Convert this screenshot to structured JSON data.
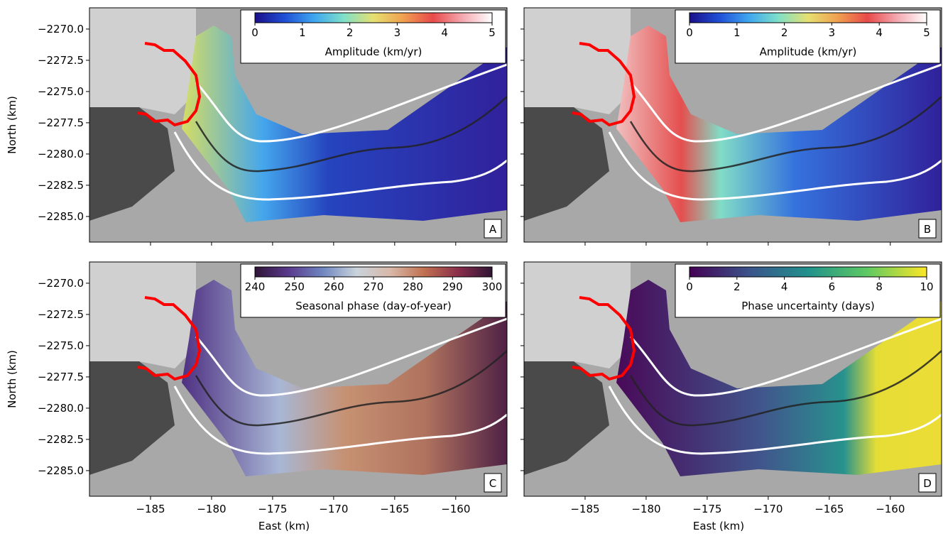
{
  "chart_data": [
    {
      "type": "map",
      "panel": "A",
      "xlim": [
        -190.0,
        -155.8
      ],
      "ylim": [
        -2287.05,
        -2268.3
      ],
      "xticks": [
        {
          "value": -185,
          "label": "−185"
        },
        {
          "value": -180,
          "label": "−180"
        },
        {
          "value": -175,
          "label": "−175"
        },
        {
          "value": -170,
          "label": "−170"
        },
        {
          "value": -165,
          "label": "−165"
        },
        {
          "value": -160,
          "label": "−160"
        }
      ],
      "yticks": [
        {
          "value": -2270.0,
          "label": "−2270.0"
        },
        {
          "value": -2272.5,
          "label": "−2272.5"
        },
        {
          "value": -2275.0,
          "label": "−2275.0"
        },
        {
          "value": -2277.5,
          "label": "−2277.5"
        },
        {
          "value": -2280.0,
          "label": "−2280.0"
        },
        {
          "value": -2282.5,
          "label": "−2282.5"
        },
        {
          "value": -2285.0,
          "label": "−2285.0"
        }
      ],
      "ylabel": "North (km)",
      "colorbar": {
        "label": "Amplitude (km/yr)",
        "lim": [
          0,
          5
        ],
        "ticks": [
          0,
          1,
          2,
          3,
          4,
          5
        ],
        "colors": [
          "#1a0f8a",
          "#1f4fd6",
          "#3fa6f0",
          "#7fe0c8",
          "#e6e070",
          "#f0a050",
          "#e84a4a",
          "#f4a8b0",
          "#ffffff"
        ]
      }
    },
    {
      "type": "map",
      "panel": "B",
      "xlim": [
        -190.0,
        -155.8
      ],
      "ylim": [
        -2287.05,
        -2268.3
      ],
      "xticks": [
        {
          "value": -185,
          "label": "−185"
        },
        {
          "value": -180,
          "label": "−180"
        },
        {
          "value": -175,
          "label": "−175"
        },
        {
          "value": -170,
          "label": "−170"
        },
        {
          "value": -165,
          "label": "−165"
        },
        {
          "value": -160,
          "label": "−160"
        }
      ],
      "yticks": [
        {
          "value": -2270.0,
          "label": "−2270.0"
        },
        {
          "value": -2272.5,
          "label": "−2272.5"
        },
        {
          "value": -2275.0,
          "label": "−2275.0"
        },
        {
          "value": -2277.5,
          "label": "−2277.5"
        },
        {
          "value": -2280.0,
          "label": "−2280.0"
        },
        {
          "value": -2282.5,
          "label": "−2282.5"
        },
        {
          "value": -2285.0,
          "label": "−2285.0"
        }
      ],
      "colorbar": {
        "label": "Amplitude (km/yr)",
        "lim": [
          0,
          5
        ],
        "ticks": [
          0,
          1,
          2,
          3,
          4,
          5
        ],
        "colors": [
          "#1a0f8a",
          "#1f4fd6",
          "#3fa6f0",
          "#7fe0c8",
          "#e6e070",
          "#f0a050",
          "#e84a4a",
          "#f4a8b0",
          "#ffffff"
        ]
      }
    },
    {
      "type": "map",
      "panel": "C",
      "xlim": [
        -190.0,
        -155.8
      ],
      "ylim": [
        -2287.05,
        -2268.3
      ],
      "xticks": [
        {
          "value": -185,
          "label": "−185"
        },
        {
          "value": -180,
          "label": "−180"
        },
        {
          "value": -175,
          "label": "−175"
        },
        {
          "value": -170,
          "label": "−170"
        },
        {
          "value": -165,
          "label": "−165"
        },
        {
          "value": -160,
          "label": "−160"
        }
      ],
      "yticks": [
        {
          "value": -2270.0,
          "label": "−2270.0"
        },
        {
          "value": -2272.5,
          "label": "−2272.5"
        },
        {
          "value": -2275.0,
          "label": "−2275.0"
        },
        {
          "value": -2277.5,
          "label": "−2277.5"
        },
        {
          "value": -2280.0,
          "label": "−2280.0"
        },
        {
          "value": -2282.5,
          "label": "−2282.5"
        },
        {
          "value": -2285.0,
          "label": "−2285.0"
        }
      ],
      "xlabel": "East (km)",
      "ylabel": "North (km)",
      "colorbar": {
        "label": "Seasonal phase (day-of-year)",
        "lim": [
          240,
          300
        ],
        "ticks": [
          240,
          250,
          260,
          270,
          280,
          290,
          300
        ],
        "colors": [
          "#2f1436",
          "#5a3a8e",
          "#6f86c0",
          "#c9d3dc",
          "#d8b8a8",
          "#c07050",
          "#8a2e4a",
          "#2f1436"
        ]
      }
    },
    {
      "type": "map",
      "panel": "D",
      "xlim": [
        -190.0,
        -155.8
      ],
      "ylim": [
        -2287.05,
        -2268.3
      ],
      "xticks": [
        {
          "value": -185,
          "label": "−185"
        },
        {
          "value": -180,
          "label": "−180"
        },
        {
          "value": -175,
          "label": "−175"
        },
        {
          "value": -170,
          "label": "−170"
        },
        {
          "value": -165,
          "label": "−165"
        },
        {
          "value": -160,
          "label": "−160"
        }
      ],
      "yticks": [
        {
          "value": -2270.0,
          "label": "−2270.0"
        },
        {
          "value": -2272.5,
          "label": "−2272.5"
        },
        {
          "value": -2275.0,
          "label": "−2275.0"
        },
        {
          "value": -2277.5,
          "label": "−2277.5"
        },
        {
          "value": -2280.0,
          "label": "−2280.0"
        },
        {
          "value": -2282.5,
          "label": "−2282.5"
        },
        {
          "value": -2285.0,
          "label": "−2285.0"
        }
      ],
      "xlabel": "East (km)",
      "colorbar": {
        "label": "Phase uncertainty (days)",
        "lim": [
          0,
          10
        ],
        "ticks": [
          0,
          2,
          4,
          6,
          8,
          10
        ],
        "colors": [
          "#440154",
          "#3b528b",
          "#21918c",
          "#5ec962",
          "#fde725"
        ]
      }
    }
  ]
}
